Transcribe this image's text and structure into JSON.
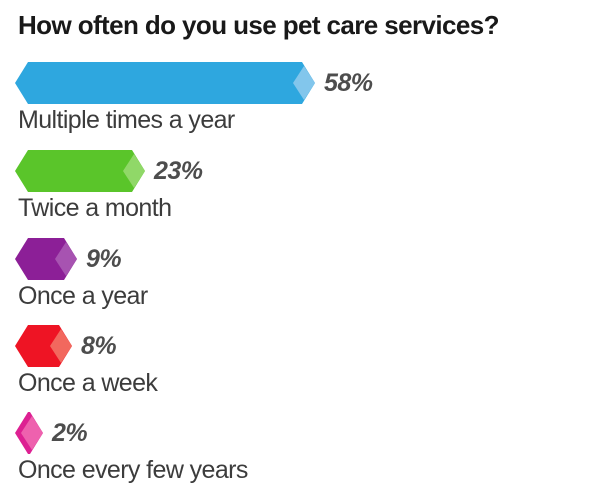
{
  "page": {
    "background_color": "#ffffff"
  },
  "chart_data": {
    "type": "bar",
    "orientation": "horizontal",
    "title": "How often do you use pet care services?",
    "categories": [
      "Multiple times a year",
      "Twice a month",
      "Once a year",
      "Once a week",
      "Once every few years"
    ],
    "values": [
      58,
      23,
      9,
      8,
      2
    ],
    "value_labels": [
      "58%",
      "23%",
      "9%",
      "8%",
      "2%"
    ],
    "bar_colors": [
      "#2EA7DF",
      "#5AC52A",
      "#8C1F97",
      "#EE1424",
      "#DD2092"
    ],
    "tip_colors": [
      "#82C6EC",
      "#90D868",
      "#A753B1",
      "#F2685E",
      "#EE61AE"
    ],
    "xlim": [
      0,
      60
    ],
    "grid": false,
    "legend": false,
    "bar_shape": "hexagon-with-light-diamond-tip"
  },
  "styles": {
    "title_color": "#191919",
    "value_label_color": "#4d4d4d",
    "category_label_color": "#3c3c3c"
  }
}
